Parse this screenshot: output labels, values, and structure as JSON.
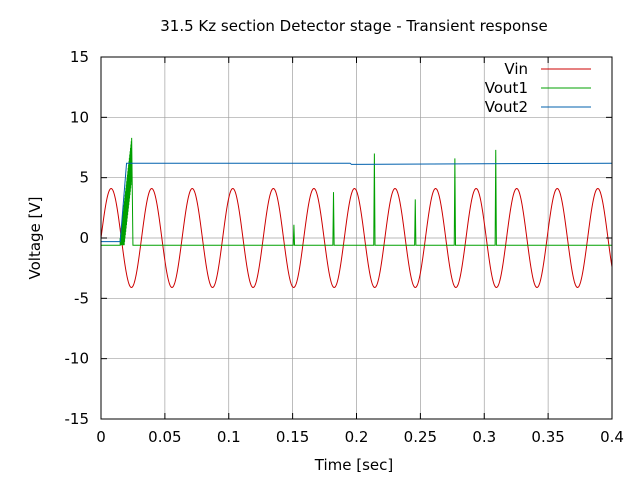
{
  "chart_data": {
    "type": "line",
    "title": "31.5 Kz section Detector stage - Transient response",
    "xlabel": "Time [sec]",
    "ylabel": "Voltage [V]",
    "xlim": [
      0,
      0.4
    ],
    "ylim": [
      -15,
      15
    ],
    "xticks": [
      "0",
      "0.05",
      "0.1",
      "0.15",
      "0.2",
      "0.25",
      "0.3",
      "0.35",
      "0.4"
    ],
    "yticks": [
      "-15",
      "-10",
      "-5",
      "0",
      "5",
      "10",
      "15"
    ],
    "grid": true,
    "legend_position": "top-right",
    "series": [
      {
        "name": "Vin",
        "color": "#cc0000",
        "description_of_shape": "sinusoid",
        "amplitude": 4.1,
        "frequency_hz": 31.5,
        "offset": 0
      },
      {
        "name": "Vout1",
        "color": "#00a000",
        "baseline": -0.6,
        "burst": {
          "x_start": 0.015,
          "x_end": 0.024,
          "y_max": 8.3
        },
        "spikes": [
          {
            "x": 0.151,
            "y": 1.1
          },
          {
            "x": 0.182,
            "y": 3.8
          },
          {
            "x": 0.214,
            "y": 7.0
          },
          {
            "x": 0.246,
            "y": 3.2
          },
          {
            "x": 0.277,
            "y": 6.6
          },
          {
            "x": 0.309,
            "y": 7.3
          }
        ]
      },
      {
        "name": "Vout2",
        "color": "#0060ad",
        "points": [
          [
            0.0,
            -0.3
          ],
          [
            0.015,
            -0.3
          ],
          [
            0.02,
            6.2
          ],
          [
            0.195,
            6.2
          ],
          [
            0.196,
            6.1
          ],
          [
            0.4,
            6.2
          ]
        ]
      }
    ]
  }
}
